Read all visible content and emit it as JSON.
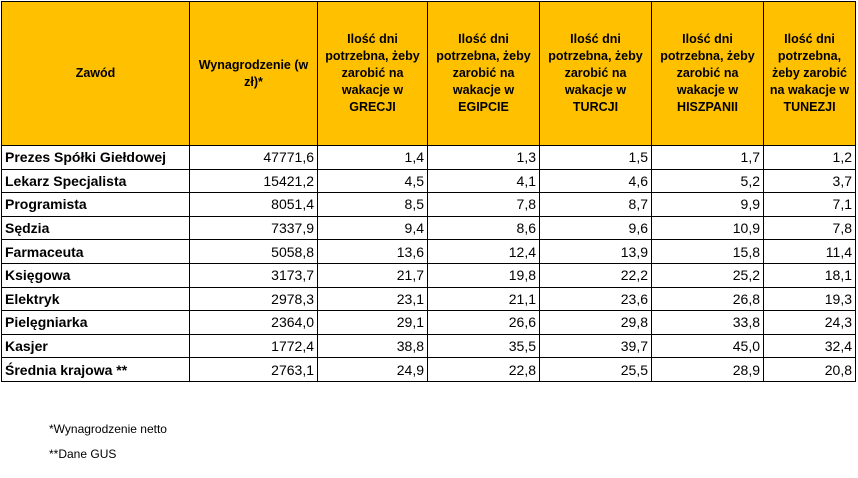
{
  "headers": [
    "Zawód",
    "Wynagrodzenie (w zł)*",
    "Ilość dni potrzebna, żeby zarobić na wakacje w GRECJI",
    "Ilość dni potrzebna, żeby zarobić na wakacje w EGIPCIE",
    "Ilość dni potrzebna, żeby zarobić na wakacje w TURCJI",
    "Ilość dni potrzebna, żeby zarobić na wakacje w HISZPANII",
    "Ilość dni potrzebna, żeby zarobić na wakacje w TUNEZJI"
  ],
  "rows": [
    [
      "Prezes Spółki Giełdowej",
      "47771,6",
      "1,4",
      "1,3",
      "1,5",
      "1,7",
      "1,2"
    ],
    [
      "Lekarz Specjalista",
      "15421,2",
      "4,5",
      "4,1",
      "4,6",
      "5,2",
      "3,7"
    ],
    [
      "Programista",
      "8051,4",
      "8,5",
      "7,8",
      "8,7",
      "9,9",
      "7,1"
    ],
    [
      "Sędzia",
      "7337,9",
      "9,4",
      "8,6",
      "9,6",
      "10,9",
      "7,8"
    ],
    [
      "Farmaceuta",
      "5058,8",
      "13,6",
      "12,4",
      "13,9",
      "15,8",
      "11,4"
    ],
    [
      "Księgowa",
      "3173,7",
      "21,7",
      "19,8",
      "22,2",
      "25,2",
      "18,1"
    ],
    [
      "Elektryk",
      "2978,3",
      "23,1",
      "21,1",
      "23,6",
      "26,8",
      "19,3"
    ],
    [
      "Pielęgniarka",
      "2364,0",
      "29,1",
      "26,6",
      "29,8",
      "33,8",
      "24,3"
    ],
    [
      "Kasjer",
      "1772,4",
      "38,8",
      "35,5",
      "39,7",
      "45,0",
      "32,4"
    ],
    [
      "Średnia krajowa **",
      "2763,1",
      "24,9",
      "22,8",
      "25,5",
      "28,9",
      "20,8"
    ]
  ],
  "notes": {
    "netto": "*Wynagrodzenie netto",
    "gus": "**Dane GUS"
  },
  "colors": {
    "header_bg": "#ffc000"
  }
}
